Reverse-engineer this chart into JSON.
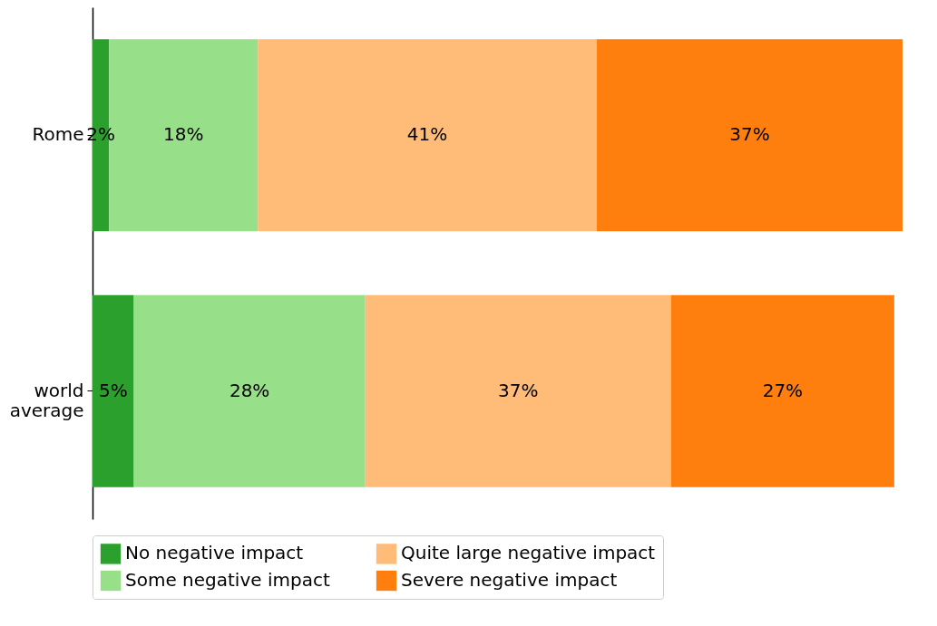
{
  "chart_data": {
    "type": "bar",
    "orientation": "horizontal",
    "stacked": true,
    "legend": "bottom",
    "grid": false,
    "categories": [
      "Rome",
      "world average"
    ],
    "series": [
      {
        "name": "No negative impact",
        "color": "#2ca02c",
        "values": [
          2,
          5
        ],
        "value_labels": [
          "2%",
          "5%"
        ]
      },
      {
        "name": "Some negative impact",
        "color": "#98df8a",
        "values": [
          18,
          28
        ],
        "value_labels": [
          "18%",
          "28%"
        ]
      },
      {
        "name": "Quite large negative impact",
        "color": "#ffbb78",
        "values": [
          41,
          37
        ],
        "value_labels": [
          "41%",
          "37%"
        ]
      },
      {
        "name": "Severe negative impact",
        "color": "#ff7f0e",
        "values": [
          37,
          27
        ],
        "value_labels": [
          "37%",
          "27%"
        ]
      }
    ]
  }
}
